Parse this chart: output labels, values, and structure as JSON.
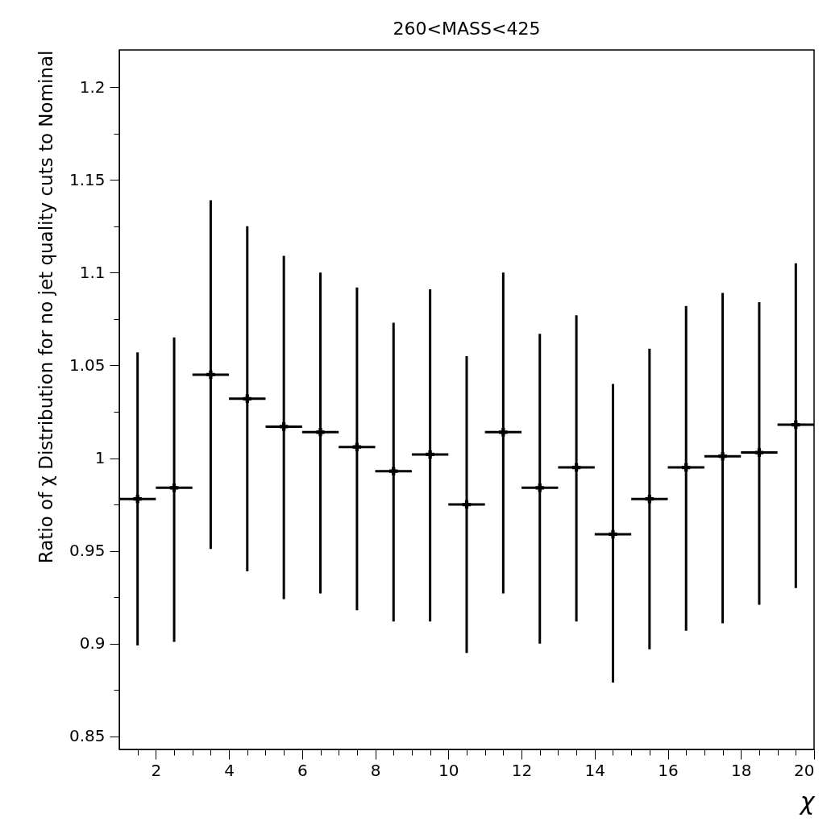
{
  "chart_data": {
    "type": "scatter",
    "title": "260<MASS<425",
    "xlabel": "χ",
    "ylabel": "Ratio of χ Distribution for no jet quality cuts to Nominal",
    "marker": "cross",
    "grid": false,
    "legend": false,
    "x": [
      1.5,
      2.5,
      3.5,
      4.5,
      5.5,
      6.5,
      7.5,
      8.5,
      9.5,
      10.5,
      11.5,
      12.5,
      13.5,
      14.5,
      15.5,
      16.5,
      17.5,
      18.5,
      19.5
    ],
    "values": [
      0.978,
      0.984,
      1.045,
      1.032,
      1.017,
      1.014,
      1.006,
      0.993,
      1.002,
      0.975,
      1.014,
      0.984,
      0.995,
      0.959,
      0.978,
      0.995,
      1.001,
      1.003,
      1.018
    ],
    "errors": [
      [
        0.899,
        1.057
      ],
      [
        0.901,
        1.065
      ],
      [
        0.951,
        1.139
      ],
      [
        0.939,
        1.125
      ],
      [
        0.924,
        1.109
      ],
      [
        0.927,
        1.1
      ],
      [
        0.918,
        1.092
      ],
      [
        0.912,
        1.073
      ],
      [
        0.912,
        1.091
      ],
      [
        0.895,
        1.055
      ],
      [
        0.927,
        1.1
      ],
      [
        0.9,
        1.067
      ],
      [
        0.912,
        1.077
      ],
      [
        0.879,
        1.04
      ],
      [
        0.897,
        1.059
      ],
      [
        0.907,
        1.082
      ],
      [
        0.911,
        1.089
      ],
      [
        0.921,
        1.084
      ],
      [
        0.93,
        1.105
      ]
    ],
    "xerrors": [
      0.5,
      0.5,
      0.5,
      0.5,
      0.5,
      0.5,
      0.5,
      0.5,
      0.5,
      0.5,
      0.5,
      0.5,
      0.5,
      0.5,
      0.5,
      0.5,
      0.5,
      0.5,
      0.5
    ],
    "xlim": [
      1,
      20
    ],
    "xticks": [
      {
        "value": 1.5,
        "label": null
      },
      2,
      {
        "value": 2.5,
        "label": null
      },
      {
        "value": 3,
        "label": null
      },
      {
        "value": 3.5,
        "label": null
      },
      4,
      {
        "value": 4.5,
        "label": null
      },
      {
        "value": 5,
        "label": null
      },
      {
        "value": 5.5,
        "label": null
      },
      6,
      {
        "value": 6.5,
        "label": null
      },
      {
        "value": 7,
        "label": null
      },
      {
        "value": 7.5,
        "label": null
      },
      8,
      {
        "value": 8.5,
        "label": null
      },
      {
        "value": 9,
        "label": null
      },
      {
        "value": 9.5,
        "label": null
      },
      10,
      {
        "value": 10.5,
        "label": null
      },
      {
        "value": 11,
        "label": null
      },
      {
        "value": 11.5,
        "label": null
      },
      12,
      {
        "value": 12.5,
        "label": null
      },
      {
        "value": 13,
        "label": null
      },
      {
        "value": 13.5,
        "label": null
      },
      14,
      {
        "value": 14.5,
        "label": null
      },
      {
        "value": 15,
        "label": null
      },
      {
        "value": 15.5,
        "label": null
      },
      16,
      {
        "value": 16.5,
        "label": null
      },
      {
        "value": 17,
        "label": null
      },
      {
        "value": 17.5,
        "label": null
      },
      18,
      {
        "value": 18.5,
        "label": null
      },
      {
        "value": 19,
        "label": null
      },
      {
        "value": 19.5,
        "label": null
      },
      20
    ],
    "ylim": [
      0.843,
      1.22
    ],
    "yticks": [
      0.85,
      {
        "value": 0.875,
        "label": null
      },
      0.9,
      {
        "value": 0.925,
        "label": null
      },
      0.95,
      {
        "value": 0.975,
        "label": null
      },
      1,
      {
        "value": 1.025,
        "label": null
      },
      1.05,
      {
        "value": 1.075,
        "label": null
      },
      1.1,
      {
        "value": 1.125,
        "label": null
      },
      1.15,
      {
        "value": 1.175,
        "label": null
      },
      1.2
    ]
  }
}
